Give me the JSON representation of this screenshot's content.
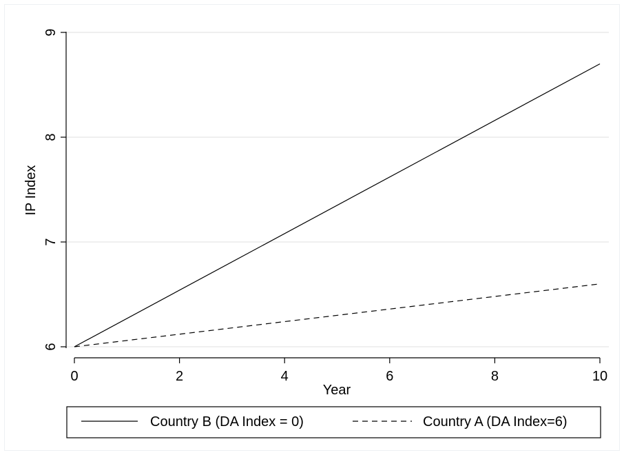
{
  "chart_data": {
    "type": "line",
    "title": "",
    "xlabel": "Year",
    "ylabel": "IP Index",
    "xlim": [
      0,
      10
    ],
    "ylim": [
      6,
      9
    ],
    "xticks": [
      0,
      2,
      4,
      6,
      8,
      10
    ],
    "yticks": [
      6,
      7,
      8,
      9
    ],
    "grid": "horizontal",
    "legend_position": "bottom",
    "series": [
      {
        "name": "Country B (DA Index = 0)",
        "style": "solid",
        "color": "#000000",
        "x": [
          0,
          10
        ],
        "y": [
          6,
          8.7
        ]
      },
      {
        "name": "Country A (DA Index=6)",
        "style": "dashed",
        "color": "#000000",
        "x": [
          0,
          10
        ],
        "y": [
          6,
          6.6
        ]
      }
    ]
  }
}
